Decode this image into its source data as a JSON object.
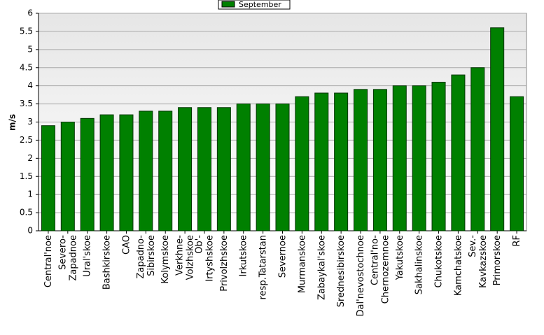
{
  "chart_data": {
    "type": "bar",
    "y_label": "m/s",
    "categories": [
      "Central'noe",
      "Severo-\nZapadnoe",
      "Ural'skoe",
      "Bashkirskoe",
      "CAO",
      "Zapadno-\nSibirskoe",
      "Kolymskoe",
      "Verkhne-\nVolzhskoe",
      "Ob'-\nIrtyshskoe",
      "Privolzhskoe",
      "Irkutskoe",
      "resp.Tatarstan",
      "Severnoe",
      "Murmanskoe",
      "Zabaykal'skoe",
      "Srednesibirskoe",
      "Dal'nevostochnoe",
      "Central'no-\nChernozemnoe",
      "Yakutskoe",
      "Sakhalinskoe",
      "Chukotskoe",
      "Kamchatskoe",
      "Sev.-\nKavkazskoe",
      "Primorskoe",
      "RF"
    ],
    "series": [
      {
        "name": "September",
        "color": "#008000",
        "values": [
          2.9,
          3.0,
          3.1,
          3.2,
          3.2,
          3.3,
          3.3,
          3.4,
          3.4,
          3.4,
          3.5,
          3.5,
          3.5,
          3.7,
          3.8,
          3.8,
          3.9,
          3.9,
          4.0,
          4.0,
          4.1,
          4.3,
          4.5,
          5.6,
          3.7
        ]
      }
    ],
    "ylim": [
      0,
      6
    ],
    "yticks": [
      0,
      0.5,
      1,
      1.5,
      2,
      2.5,
      3,
      3.5,
      4,
      4.5,
      5,
      5.5,
      6
    ],
    "grid": true,
    "legend": "top"
  }
}
